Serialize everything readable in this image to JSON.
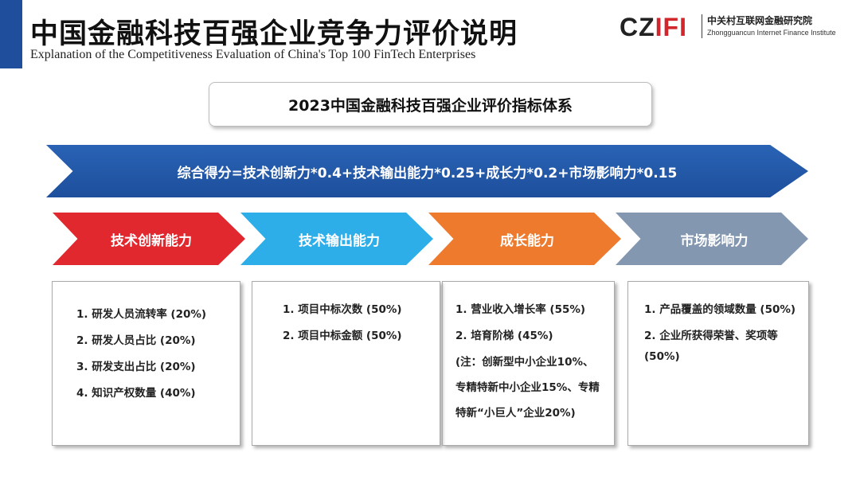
{
  "header": {
    "title": "中国金融科技百强企业竞争力评价说明",
    "subtitle": "Explanation of the Competitiveness Evaluation of China's Top 100 FinTech Enterprises",
    "accent": "#1f4e9c"
  },
  "logo": {
    "mark": "CZIFI",
    "name_cn": "中关村互联网金融研究院",
    "name_en": "Zhongguancun Internet Finance Institute"
  },
  "system_title": "2023中国金融科技百强企业评价指标体系",
  "formula": "综合得分=技术创新力*0.4+技术输出能力*0.25+成长力*0.2+市场影响力*0.15",
  "categories": [
    {
      "label": "技术创新能力",
      "color": "#e0282e",
      "items": [
        "1. 研发人员流转率 (20%)",
        "2. 研发人员占比 (20%)",
        "3. 研发支出占比 (20%)",
        "4. 知识产权数量 (40%)"
      ]
    },
    {
      "label": "技术输出能力",
      "color": "#2eaee9",
      "items": [
        "1. 项目中标次数 (50%)",
        "2. 项目中标金额 (50%)"
      ]
    },
    {
      "label": "成长能力",
      "color": "#ee7a2e",
      "items": [
        "1. 营业收入增长率 (55%)",
        "2. 培育阶梯 (45%)",
        "(注：创新型中小企业10%、专精特新中小企业15%、专精特新“小巨人”企业20%)"
      ]
    },
    {
      "label": "市场影响力",
      "color": "#8497b0",
      "items": [
        "1. 产品覆盖的领域数量 (50%)",
        "2. 企业所获得荣誉、奖项等 (50%)"
      ]
    }
  ]
}
